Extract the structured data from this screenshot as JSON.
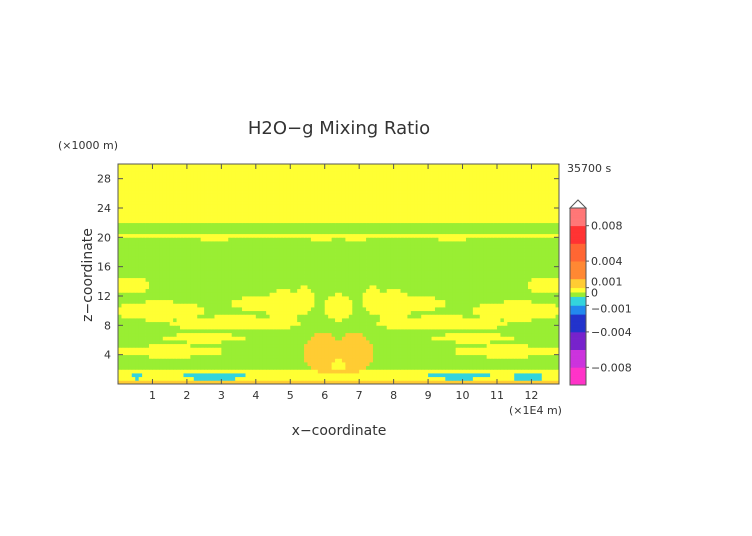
{
  "chart_data": {
    "type": "heatmap",
    "title": "H2O−g Mixing Ratio",
    "xlabel": "x−coordinate",
    "ylabel": "z−coordinate",
    "x_unit": "(×1E4 m)",
    "y_unit": "(×1000 m)",
    "time_label": "35700 s",
    "xlim": [
      0,
      12.8
    ],
    "ylim": [
      0,
      30
    ],
    "x_ticks": [
      1,
      2,
      3,
      4,
      5,
      6,
      7,
      8,
      9,
      10,
      11,
      12
    ],
    "y_ticks": [
      4,
      8,
      12,
      16,
      20,
      24,
      28
    ],
    "colorbar": {
      "range": [
        -0.01,
        0.01
      ],
      "tick_values": [
        0.008,
        0.004,
        0.001,
        0,
        -0.001,
        -0.004,
        -0.008
      ],
      "tick_labels": [
        "0.008",
        "0.004",
        "0.001",
        "0",
        "−0.001",
        "−0.004",
        "−0.008"
      ],
      "colors": [
        {
          "value": -0.01,
          "color": "#ff33c8"
        },
        {
          "value": -0.008,
          "color": "#cc33dd"
        },
        {
          "value": -0.006,
          "color": "#7722cc"
        },
        {
          "value": -0.004,
          "color": "#2233cc"
        },
        {
          "value": -0.002,
          "color": "#2288ee"
        },
        {
          "value": -0.001,
          "color": "#33d4dd"
        },
        {
          "value": 0,
          "color": "#99ee33"
        },
        {
          "value": 0.0005,
          "color": "#ffff33"
        },
        {
          "value": 0.001,
          "color": "#ffcc33"
        },
        {
          "value": 0.002,
          "color": "#ff8833"
        },
        {
          "value": 0.004,
          "color": "#ff6633"
        },
        {
          "value": 0.006,
          "color": "#ff3333"
        },
        {
          "value": 0.008,
          "color": "#ff7777"
        },
        {
          "value": 0.01,
          "color": "#ffb0b0"
        }
      ]
    },
    "field": {
      "background_value": 0.0005,
      "regions": [
        {
          "kind": "band",
          "z": [
            22.2,
            30
          ],
          "value": 0.0005
        },
        {
          "kind": "band",
          "z": [
            2.2,
            22.2
          ],
          "value": 0.0
        },
        {
          "kind": "band",
          "z": [
            20.1,
            20.6
          ],
          "value": 0.0005
        },
        {
          "kind": "band",
          "z": [
            0.6,
            2.2
          ],
          "value": 0.0005
        },
        {
          "kind": "band",
          "z": [
            0,
            0.6
          ],
          "value": 0.0018
        },
        {
          "kind": "blob",
          "x": 0.55,
          "z": 1.2,
          "rx": 0.15,
          "rz": 0.5,
          "value": -0.001
        },
        {
          "kind": "blob",
          "x": 2.8,
          "z": 1.1,
          "rx": 0.9,
          "rz": 0.5,
          "value": -0.001
        },
        {
          "kind": "blob",
          "x": 9.9,
          "z": 1.2,
          "rx": 0.9,
          "rz": 0.5,
          "value": -0.001
        },
        {
          "kind": "blob",
          "x": 11.9,
          "z": 1.0,
          "rx": 0.5,
          "rz": 0.4,
          "value": -0.001
        },
        {
          "kind": "blob",
          "x": 5.95,
          "z": 4.3,
          "rx": 0.55,
          "rz": 2.7,
          "value": 0.0018
        },
        {
          "kind": "blob",
          "x": 6.85,
          "z": 4.3,
          "rx": 0.55,
          "rz": 2.7,
          "value": 0.0018
        },
        {
          "kind": "blob",
          "x": 6.4,
          "z": 3.0,
          "rx": 0.9,
          "rz": 1.6,
          "value": 0.0018
        },
        {
          "kind": "blob",
          "x": 6.4,
          "z": 2.6,
          "rx": 0.25,
          "rz": 0.8,
          "value": 0.0005
        },
        {
          "kind": "blob",
          "x": 1.5,
          "z": 4.5,
          "rx": 1.6,
          "rz": 0.8,
          "value": 0.0005
        },
        {
          "kind": "blob",
          "x": 11.3,
          "z": 4.5,
          "rx": 1.6,
          "rz": 0.8,
          "value": 0.0005
        },
        {
          "kind": "blob",
          "x": 3.4,
          "z": 8.3,
          "rx": 1.9,
          "rz": 1.0,
          "value": 0.0005
        },
        {
          "kind": "blob",
          "x": 9.4,
          "z": 8.3,
          "rx": 1.9,
          "rz": 1.0,
          "value": 0.0005
        },
        {
          "kind": "blob",
          "x": 1.2,
          "z": 10.0,
          "rx": 1.3,
          "rz": 1.3,
          "value": 0.0005
        },
        {
          "kind": "blob",
          "x": 11.6,
          "z": 10.0,
          "rx": 1.3,
          "rz": 1.3,
          "value": 0.0005
        },
        {
          "kind": "blob",
          "x": 12.4,
          "z": 13.5,
          "rx": 0.5,
          "rz": 1.2,
          "value": 0.0005
        },
        {
          "kind": "blob",
          "x": 0.4,
          "z": 13.5,
          "rx": 0.5,
          "rz": 1.2,
          "value": 0.0005
        },
        {
          "kind": "blob",
          "x": 4.8,
          "z": 10.5,
          "rx": 0.5,
          "rz": 2.5,
          "value": 0.0005
        },
        {
          "kind": "blob",
          "x": 8.0,
          "z": 10.5,
          "rx": 0.5,
          "rz": 2.5,
          "value": 0.0005
        },
        {
          "kind": "blob",
          "x": 5.4,
          "z": 11.5,
          "rx": 0.3,
          "rz": 2.0,
          "value": 0.0005
        },
        {
          "kind": "blob",
          "x": 7.4,
          "z": 11.5,
          "rx": 0.3,
          "rz": 2.0,
          "value": 0.0005
        },
        {
          "kind": "blob",
          "x": 4.1,
          "z": 11.0,
          "rx": 0.8,
          "rz": 1.0,
          "value": 0.0005
        },
        {
          "kind": "blob",
          "x": 8.7,
          "z": 11.0,
          "rx": 0.8,
          "rz": 1.0,
          "value": 0.0005
        },
        {
          "kind": "blob",
          "x": 6.4,
          "z": 10.5,
          "rx": 0.45,
          "rz": 1.8,
          "value": 0.0005
        },
        {
          "kind": "blob",
          "x": 2.5,
          "z": 6.3,
          "rx": 1.2,
          "rz": 0.6,
          "value": 0.0005
        },
        {
          "kind": "blob",
          "x": 10.3,
          "z": 6.3,
          "rx": 1.2,
          "rz": 0.6,
          "value": 0.0005
        },
        {
          "kind": "blob",
          "x": 2.8,
          "z": 19.7,
          "rx": 0.4,
          "rz": 0.4,
          "value": 0.0005
        },
        {
          "kind": "blob",
          "x": 9.7,
          "z": 19.7,
          "rx": 0.4,
          "rz": 0.4,
          "value": 0.0005
        },
        {
          "kind": "blob",
          "x": 5.9,
          "z": 19.8,
          "rx": 0.3,
          "rz": 0.3,
          "value": 0.0005
        },
        {
          "kind": "blob",
          "x": 6.9,
          "z": 19.8,
          "rx": 0.3,
          "rz": 0.3,
          "value": 0.0005
        }
      ]
    }
  }
}
